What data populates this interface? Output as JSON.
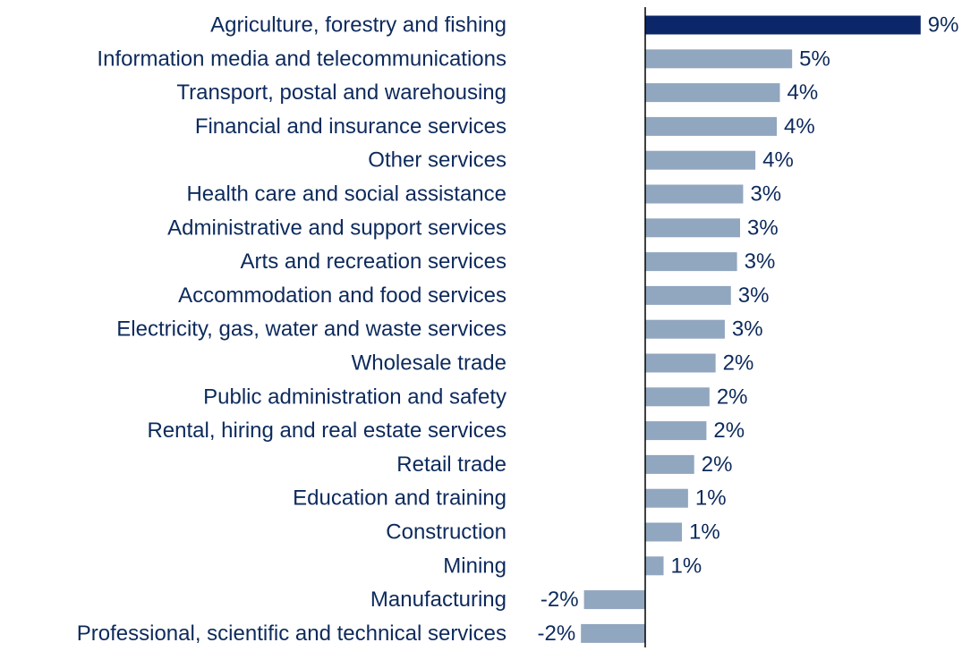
{
  "chart_data": {
    "type": "bar",
    "orientation": "horizontal",
    "title": "",
    "xlabel": "",
    "ylabel": "",
    "categories": [
      "Agriculture, forestry and fishing",
      "Information media and telecommunications",
      "Transport, postal and warehousing",
      "Financial and insurance services",
      "Other services",
      "Health care and social assistance",
      "Administrative and support services",
      "Arts and recreation services",
      "Accommodation and food services",
      "Electricity, gas, water and waste services",
      "Wholesale trade",
      "Public administration and safety",
      "Rental, hiring and real estate services",
      "Retail trade",
      "Education and training",
      "Construction",
      "Mining",
      "Manufacturing",
      "Professional, scientific and technical services"
    ],
    "values": [
      9.0,
      4.8,
      4.4,
      4.3,
      3.6,
      3.2,
      3.1,
      3.0,
      2.8,
      2.6,
      2.3,
      2.1,
      2.0,
      1.6,
      1.4,
      1.2,
      0.6,
      -2.0,
      -2.1
    ],
    "value_labels": [
      "9%",
      "5%",
      "4%",
      "4%",
      "4%",
      "3%",
      "3%",
      "3%",
      "3%",
      "3%",
      "2%",
      "2%",
      "2%",
      "2%",
      "1%",
      "1%",
      "1%",
      "-2%",
      "-2%"
    ],
    "xlim": [
      -2.1,
      9.0
    ],
    "grid": false,
    "legend": "none",
    "colors": {
      "highlight": "#0c2769",
      "default": "#91a6bf",
      "text": "#0d2a5c",
      "axis": "#000000"
    },
    "highlight_index": 0
  }
}
